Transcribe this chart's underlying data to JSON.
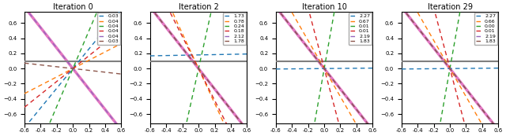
{
  "titles": [
    "Iteration 0",
    "Iteration 2",
    "Iteration 10",
    "Iteration 29"
  ],
  "xlim": [
    -0.6,
    0.6
  ],
  "ylim": [
    -0.72,
    0.75
  ],
  "xticks": [
    -0.6,
    -0.4,
    -0.2,
    0.0,
    0.2,
    0.4,
    0.6
  ],
  "gray_line_y": 0.1,
  "subplots": [
    {
      "legend_values": [
        "0.03",
        "0.04",
        "0.04",
        "0.04",
        "0.04",
        "0.03"
      ],
      "slopes": [
        1.3,
        0.55,
        2.5,
        0.85,
        -1.35,
        -0.1
      ],
      "intercepts": [
        0.0,
        0.0,
        0.0,
        0.0,
        0.0,
        0.0
      ],
      "magenta_slope": -1.35,
      "magenta_intercept": 0.0
    },
    {
      "legend_values": [
        "1.73",
        "0.78",
        "0.24",
        "0.18",
        "2.12",
        "1.78"
      ],
      "slopes": [
        0.02,
        -2.2,
        4.5,
        -2.0,
        -1.35,
        -1.35
      ],
      "intercepts": [
        0.18,
        0.0,
        0.0,
        0.0,
        0.0,
        0.0
      ],
      "magenta_slope": -1.35,
      "magenta_intercept": 0.0
    },
    {
      "legend_values": [
        "2.27",
        "0.67",
        "0.01",
        "0.01",
        "2.19",
        "1.83"
      ],
      "slopes": [
        0.01,
        -1.8,
        5.5,
        -3.5,
        -1.35,
        -1.35
      ],
      "intercepts": [
        0.0,
        0.0,
        0.0,
        0.0,
        0.0,
        0.0
      ],
      "magenta_slope": -1.35,
      "magenta_intercept": 0.0
    },
    {
      "legend_values": [
        "2.27",
        "0.66",
        "0.00",
        "0.01",
        "2.19",
        "1.83"
      ],
      "slopes": [
        0.01,
        -1.8,
        5.5,
        -3.5,
        -1.35,
        -1.35
      ],
      "intercepts": [
        0.0,
        0.0,
        0.0,
        0.0,
        0.0,
        0.0
      ],
      "magenta_slope": -1.35,
      "magenta_intercept": 0.0
    }
  ],
  "line_colors": [
    "#1f77b4",
    "#ff7f0e",
    "#2ca02c",
    "#d62728",
    "#9467bd",
    "#8c564b"
  ],
  "magenta_color": "#e377c2",
  "gray_color": "#7f7f7f",
  "background": "#ffffff"
}
